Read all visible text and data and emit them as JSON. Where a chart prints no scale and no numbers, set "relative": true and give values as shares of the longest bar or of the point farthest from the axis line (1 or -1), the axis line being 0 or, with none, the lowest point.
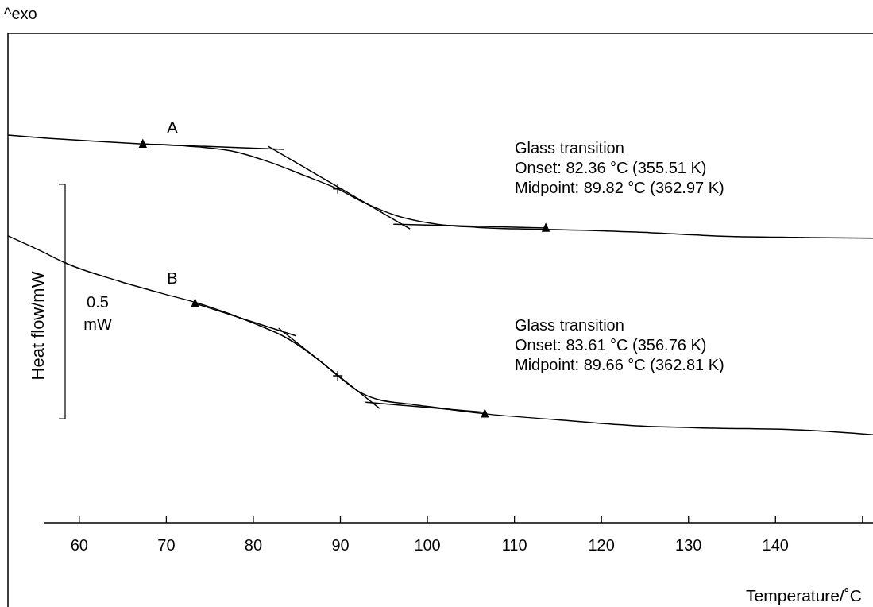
{
  "chart_data": {
    "type": "line",
    "relative": true,
    "xlabel": "Temperature/˚C",
    "ylabel": "Heat flow/mW",
    "xlim": [
      51.8,
      151.2
    ],
    "xticks": [
      60,
      70,
      80,
      90,
      100,
      110,
      120,
      130,
      140,
      {
        "value": 150,
        "label": null
      }
    ],
    "tick_labels": "x",
    "line_style": "solid",
    "annotations": [
      "^exo",
      "Glass transition\nOnset: 82.36 °C (355.51 K)\nMidpoint: 89.82 °C (362.97 K)",
      "Glass transition\nOnset: 83.61 °C (356.76 K)\nMidpoint: 89.66 °C (362.81 K)",
      "0.5\nmW"
    ],
    "series": [
      {
        "name": "A",
        "color": "#000000",
        "x": [
          51.8,
          56.3,
          61.8,
          67.3,
          72.8,
          78.3,
          81.9,
          85.6,
          89.7,
          92.9,
          96.6,
          101.1,
          105.7,
          110.3,
          114.8,
          124.0,
          133.1,
          142.3,
          151.2
        ],
        "values": [
          1.0,
          0.992,
          0.984,
          0.977,
          0.971,
          0.955,
          0.93,
          0.898,
          0.861,
          0.824,
          0.791,
          0.77,
          0.762,
          0.758,
          0.756,
          0.75,
          0.74,
          0.736,
          0.734
        ]
      },
      {
        "name": "B",
        "color": "#000000",
        "x": [
          51.8,
          55.4,
          58.4,
          64.6,
          69.1,
          73.7,
          80.1,
          83.8,
          87.4,
          89.7,
          92.0,
          94.3,
          98.4,
          106.6,
          114.8,
          124.0,
          133.1,
          142.3,
          151.2
        ],
        "values": [
          0.74,
          0.703,
          0.67,
          0.623,
          0.594,
          0.566,
          0.514,
          0.477,
          0.422,
          0.379,
          0.34,
          0.318,
          0.305,
          0.281,
          0.266,
          0.25,
          0.244,
          0.24,
          0.227
        ]
      },
      {
        "type": "line",
        "color": "#000000",
        "x": [
          67.3,
          83.5
        ],
        "values": [
          0.977,
          0.963
        ]
      },
      {
        "type": "line",
        "color": "#000000",
        "x": [
          81.7,
          98.0
        ],
        "values": [
          0.971,
          0.758
        ]
      },
      {
        "type": "line",
        "color": "#000000",
        "x": [
          96.1,
          113.6
        ],
        "values": [
          0.77,
          0.76
        ]
      },
      {
        "type": "line",
        "color": "#000000",
        "x": [
          73.3,
          84.9
        ],
        "values": [
          0.566,
          0.482
        ]
      },
      {
        "type": "line",
        "color": "#000000",
        "x": [
          82.9,
          94.5
        ],
        "values": [
          0.502,
          0.295
        ]
      },
      {
        "type": "line",
        "color": "#000000",
        "x": [
          92.9,
          106.6
        ],
        "values": [
          0.311,
          0.285
        ]
      },
      {
        "type": "scatter",
        "marker": "cross",
        "color": "#000000",
        "x": [
          89.7,
          89.7
        ],
        "values": [
          0.861,
          0.379
        ]
      },
      {
        "type": "scatter",
        "marker": "triangle",
        "color": "#000000",
        "x": [
          67.3,
          113.6,
          73.3,
          106.6
        ],
        "values": [
          0.977,
          0.76,
          0.566,
          0.281
        ]
      }
    ]
  }
}
